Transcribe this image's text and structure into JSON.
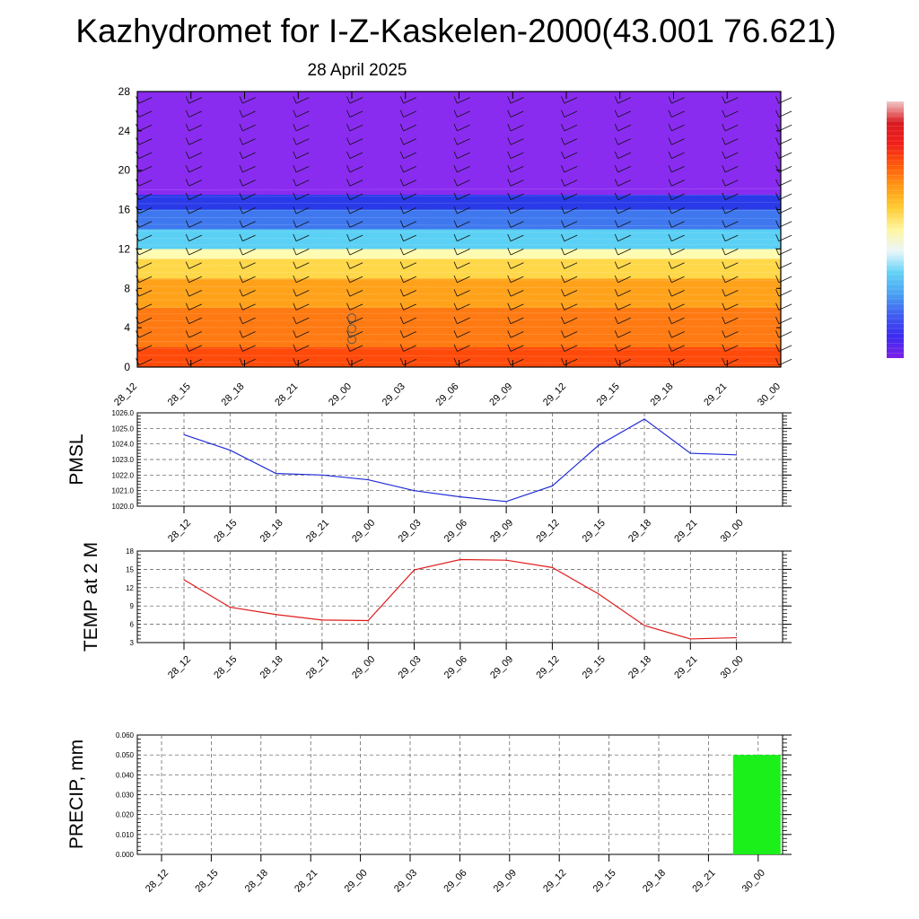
{
  "title": "Kazhydromet for I-Z-Kaskelen-2000(43.001 76.621)",
  "subtitle": "28 April 2025",
  "colors": {
    "pmsl_line": "#1f2bd6",
    "temp_line": "#e01b1b",
    "precip_bar": "#1bf01b",
    "upper_purple": "#8a2cf0",
    "blue_band": "#2a3ae8",
    "cyan": "#5ad0f4",
    "light_yellow": "#fffbb0",
    "orange": "#ffa21a",
    "red_orange": "#ff4a0a",
    "colorbar": [
      "#7d1fe8",
      "#3b2bf0",
      "#3f5cf0",
      "#4aa2f2",
      "#63d2f6",
      "#eaf6fa",
      "#fff6a0",
      "#ffcc33",
      "#ff9a14",
      "#ff5a0a",
      "#f0201a",
      "#d81a20",
      "#f2c7c7"
    ]
  },
  "chart_data": [
    {
      "type": "heatmap",
      "name": "vertical-profile",
      "x_ticks": [
        "28_12",
        "28_15",
        "28_18",
        "28_21",
        "29_00",
        "29_03",
        "29_06",
        "29_09",
        "29_12",
        "29_15",
        "29_18",
        "29_21",
        "30_00"
      ],
      "y_ticks": [
        "0",
        "4",
        "8",
        "12",
        "16",
        "20",
        "24",
        "28"
      ],
      "ylim": [
        0,
        28
      ],
      "bands": [
        {
          "from": 0,
          "to": 2,
          "color": "#ff4a0a"
        },
        {
          "from": 2,
          "to": 6,
          "color": "#ff7a12"
        },
        {
          "from": 6,
          "to": 9,
          "color": "#ffa21a"
        },
        {
          "from": 9,
          "to": 11,
          "color": "#ffd84a"
        },
        {
          "from": 11,
          "to": 12,
          "color": "#fffbb0"
        },
        {
          "from": 12,
          "to": 14,
          "color": "#5ad0f4"
        },
        {
          "from": 14,
          "to": 16,
          "color": "#3f78ee"
        },
        {
          "from": 16,
          "to": 17.5,
          "color": "#2a3ae8"
        },
        {
          "from": 17.5,
          "to": 28,
          "color": "#8a2cf0"
        }
      ],
      "wind_barbs": "present at every time step and level"
    },
    {
      "type": "line",
      "name": "pmsl",
      "ylabel": "PMSL",
      "ylim": [
        1020.0,
        1026.0
      ],
      "y_ticks": [
        "1020.0",
        "1021.0",
        "1022.0",
        "1023.0",
        "1024.0",
        "1025.0",
        "1026.0"
      ],
      "categories": [
        "28_12",
        "28_15",
        "28_18",
        "28_21",
        "29_00",
        "29_03",
        "29_06",
        "29_09",
        "29_12",
        "29_15",
        "29_18",
        "29_21",
        "30_00"
      ],
      "values": [
        1024.6,
        1023.6,
        1022.1,
        1022.0,
        1021.7,
        1021.0,
        1020.6,
        1020.3,
        1021.3,
        1023.9,
        1025.6,
        1023.4,
        1023.3
      ]
    },
    {
      "type": "line",
      "name": "temp",
      "ylabel": "TEMP at 2 M",
      "ylim": [
        3,
        18
      ],
      "y_ticks": [
        "3",
        "6",
        "9",
        "12",
        "15",
        "18"
      ],
      "categories": [
        "28_12",
        "28_15",
        "28_18",
        "28_21",
        "29_00",
        "29_03",
        "29_06",
        "29_09",
        "29_12",
        "29_15",
        "29_18",
        "29_21",
        "30_00"
      ],
      "values": [
        13.3,
        8.8,
        7.6,
        6.7,
        6.6,
        14.9,
        16.6,
        16.5,
        15.3,
        11.0,
        5.8,
        3.6,
        3.8
      ]
    },
    {
      "type": "bar",
      "name": "precip",
      "ylabel": "PRECIP, mm",
      "ylim": [
        0,
        0.06
      ],
      "y_ticks": [
        "0.000",
        "0.010",
        "0.020",
        "0.030",
        "0.040",
        "0.050",
        "0.060"
      ],
      "categories": [
        "28_12",
        "28_15",
        "28_18",
        "28_21",
        "29_00",
        "29_03",
        "29_06",
        "29_09",
        "29_12",
        "29_15",
        "29_18",
        "29_21",
        "30_00"
      ],
      "values": [
        0,
        0,
        0,
        0,
        0,
        0,
        0,
        0,
        0,
        0,
        0,
        0,
        0.05
      ]
    }
  ]
}
